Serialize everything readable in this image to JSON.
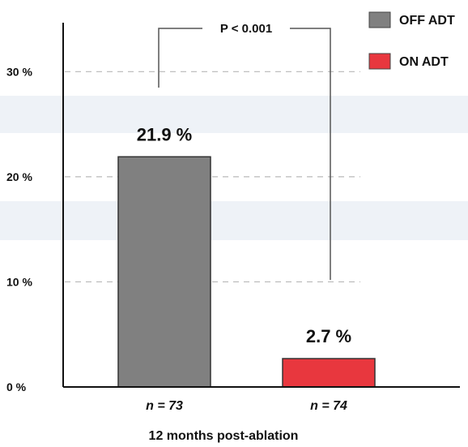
{
  "chart_data": {
    "type": "bar",
    "categories": [
      "OFF ADT",
      "ON ADT"
    ],
    "series": [
      {
        "name": "OFF ADT",
        "values": [
          21.9,
          null
        ],
        "color": "#808080"
      },
      {
        "name": "ON ADT",
        "values": [
          null,
          2.7
        ],
        "color": "#e8373e"
      }
    ],
    "values": [
      21.9,
      2.7
    ],
    "data_labels": [
      "21.9 %",
      "2.7 %"
    ],
    "n_labels": [
      "n = 73",
      "n = 74"
    ],
    "xlabel": "12 months post-ablation",
    "ylabel": "",
    "yticks": [
      0,
      10,
      20,
      30
    ],
    "ytick_labels": [
      "0 %",
      "10 %",
      "20 %",
      "30 %"
    ],
    "ylim": [
      0,
      34.5
    ],
    "grid": "dashed horizontal",
    "legend": {
      "placement": "top-right",
      "entries": [
        "OFF ADT",
        "ON ADT"
      ]
    },
    "annotation": {
      "text": "P < 0.001",
      "type": "significance bracket"
    }
  }
}
